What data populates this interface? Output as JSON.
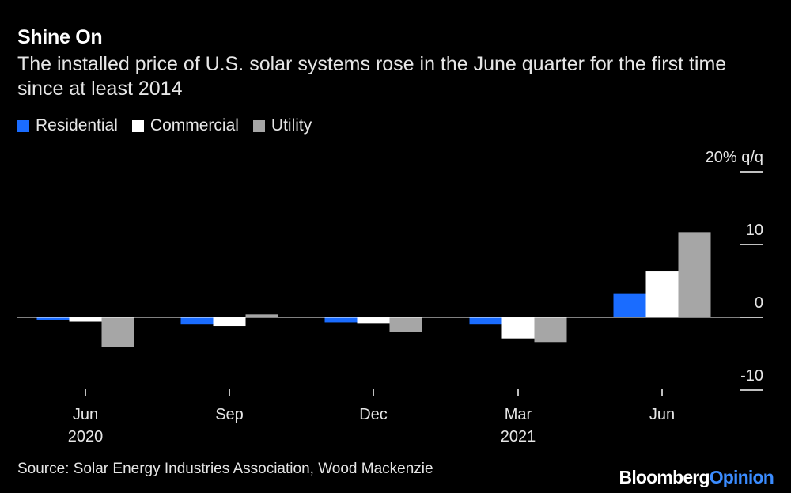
{
  "header": {
    "title": "Shine On",
    "subtitle": "The installed price of U.S. solar systems rose in the June quarter for the first time since at least 2014"
  },
  "legend": [
    {
      "label": "Residential",
      "color": "#1a6cff"
    },
    {
      "label": "Commercial",
      "color": "#ffffff"
    },
    {
      "label": "Utility",
      "color": "#a6a6a6"
    }
  ],
  "footer": {
    "source": "Source: Solar Energy Industries Association, Wood Mackenzie",
    "brand_main": "Bloomberg",
    "brand_accent": "Opinion"
  },
  "chart_data": {
    "type": "bar",
    "categories": [
      "Jun",
      "Sep",
      "Dec",
      "Mar",
      "Jun"
    ],
    "category_sublabels": [
      "2020",
      "",
      "",
      "2021",
      ""
    ],
    "series": [
      {
        "name": "Residential",
        "color": "#1a6cff",
        "values": [
          -0.4,
          -1.0,
          -0.7,
          -1.0,
          3.3
        ]
      },
      {
        "name": "Commercial",
        "color": "#ffffff",
        "values": [
          -0.6,
          -1.2,
          -0.8,
          -2.9,
          6.3
        ]
      },
      {
        "name": "Utility",
        "color": "#a6a6a6",
        "values": [
          -4.1,
          0.4,
          -2.0,
          -3.4,
          11.7
        ]
      }
    ],
    "y_ticks": [
      {
        "value": 20,
        "label": "20% q/q"
      },
      {
        "value": 10,
        "label": "10"
      },
      {
        "value": 0,
        "label": "0"
      },
      {
        "value": -10,
        "label": "-10"
      }
    ],
    "ylim": [
      -10,
      20
    ],
    "xlabel": "",
    "ylabel": "",
    "y_axis_side": "right",
    "grid": false,
    "legend_position": "top-left"
  }
}
